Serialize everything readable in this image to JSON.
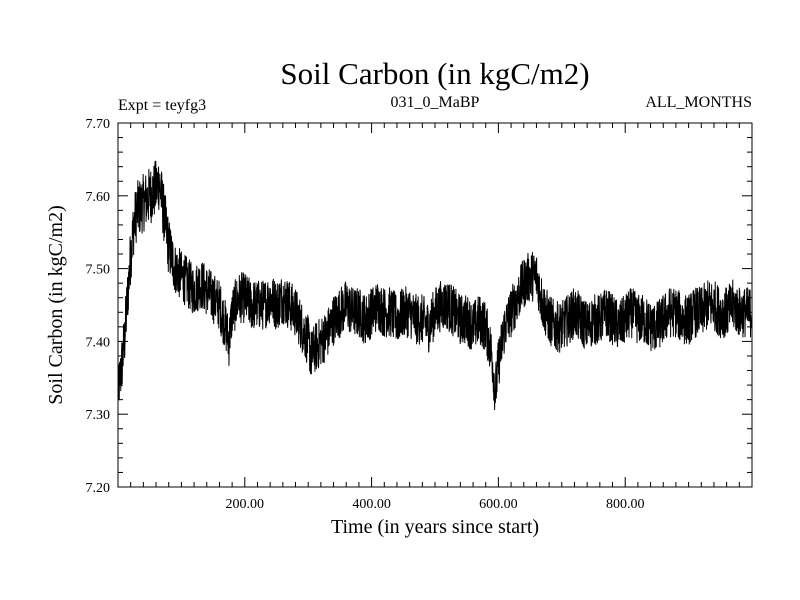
{
  "chart_data": {
    "type": "line",
    "title": "Soil Carbon (in kgC/m2)",
    "subtitle_left": "Expt = teyfg3",
    "subtitle_center": "031_0_MaBP",
    "subtitle_right": "ALL_MONTHS",
    "xlabel": "Time (in years since start)",
    "ylabel": "Soil Carbon (in kgC/m2)",
    "xlim": [
      0,
      1000
    ],
    "ylim": [
      7.2,
      7.7
    ],
    "xticks": [
      200,
      400,
      600,
      800
    ],
    "xtick_labels": [
      "200.00",
      "400.00",
      "600.00",
      "800.00"
    ],
    "yticks": [
      7.2,
      7.3,
      7.4,
      7.5,
      7.6,
      7.7
    ],
    "ytick_labels": [
      "7.20",
      "7.30",
      "7.40",
      "7.50",
      "7.60",
      "7.70"
    ],
    "grid": false,
    "line_color": "#000000",
    "series": [
      {
        "name": "Soil Carbon",
        "x": [
          0,
          5,
          10,
          15,
          20,
          25,
          30,
          40,
          50,
          60,
          65,
          70,
          80,
          90,
          100,
          110,
          120,
          130,
          140,
          150,
          160,
          170,
          175,
          180,
          190,
          200,
          210,
          220,
          230,
          240,
          250,
          260,
          270,
          280,
          290,
          300,
          305,
          310,
          320,
          330,
          340,
          350,
          360,
          370,
          380,
          390,
          400,
          410,
          420,
          430,
          440,
          450,
          460,
          470,
          480,
          490,
          500,
          510,
          520,
          530,
          540,
          550,
          560,
          570,
          580,
          590,
          595,
          600,
          610,
          620,
          630,
          640,
          650,
          660,
          665,
          670,
          680,
          690,
          700,
          710,
          720,
          730,
          740,
          750,
          760,
          770,
          780,
          790,
          800,
          810,
          820,
          830,
          840,
          850,
          860,
          870,
          880,
          890,
          900,
          910,
          920,
          930,
          940,
          950,
          960,
          970,
          980,
          990,
          1000
        ],
        "values": [
          7.33,
          7.36,
          7.4,
          7.46,
          7.52,
          7.56,
          7.58,
          7.59,
          7.6,
          7.61,
          7.62,
          7.59,
          7.53,
          7.5,
          7.49,
          7.48,
          7.47,
          7.48,
          7.47,
          7.46,
          7.45,
          7.42,
          7.4,
          7.44,
          7.46,
          7.46,
          7.45,
          7.45,
          7.45,
          7.46,
          7.45,
          7.46,
          7.45,
          7.44,
          7.42,
          7.4,
          7.38,
          7.39,
          7.4,
          7.41,
          7.43,
          7.44,
          7.45,
          7.44,
          7.44,
          7.43,
          7.44,
          7.45,
          7.44,
          7.44,
          7.43,
          7.44,
          7.44,
          7.43,
          7.43,
          7.42,
          7.44,
          7.45,
          7.45,
          7.44,
          7.43,
          7.43,
          7.42,
          7.43,
          7.42,
          7.38,
          7.33,
          7.37,
          7.42,
          7.44,
          7.46,
          7.48,
          7.49,
          7.49,
          7.47,
          7.45,
          7.43,
          7.42,
          7.42,
          7.43,
          7.44,
          7.43,
          7.42,
          7.43,
          7.43,
          7.44,
          7.43,
          7.42,
          7.43,
          7.44,
          7.43,
          7.43,
          7.42,
          7.42,
          7.43,
          7.44,
          7.44,
          7.43,
          7.43,
          7.44,
          7.44,
          7.45,
          7.45,
          7.44,
          7.44,
          7.45,
          7.44,
          7.44,
          7.44
        ],
        "noise_amplitude": [
          0.03,
          0.04,
          0.04,
          0.04,
          0.04,
          0.04,
          0.04,
          0.04,
          0.04,
          0.04,
          0.04,
          0.04,
          0.04,
          0.035,
          0.035,
          0.035,
          0.035,
          0.035,
          0.035,
          0.035,
          0.035,
          0.035,
          0.035,
          0.035,
          0.035,
          0.035,
          0.035,
          0.035,
          0.035,
          0.035,
          0.035,
          0.035,
          0.035,
          0.035,
          0.035,
          0.035,
          0.035,
          0.035,
          0.035,
          0.035,
          0.035,
          0.035,
          0.035,
          0.035,
          0.035,
          0.035,
          0.035,
          0.035,
          0.035,
          0.035,
          0.035,
          0.035,
          0.035,
          0.035,
          0.035,
          0.035,
          0.035,
          0.035,
          0.035,
          0.035,
          0.035,
          0.035,
          0.035,
          0.035,
          0.035,
          0.035,
          0.035,
          0.035,
          0.035,
          0.035,
          0.035,
          0.035,
          0.035,
          0.035,
          0.035,
          0.035,
          0.035,
          0.035,
          0.035,
          0.035,
          0.035,
          0.035,
          0.035,
          0.035,
          0.035,
          0.035,
          0.035,
          0.035,
          0.035,
          0.035,
          0.035,
          0.035,
          0.035,
          0.035,
          0.035,
          0.035,
          0.035,
          0.035,
          0.035,
          0.035,
          0.035,
          0.035,
          0.035,
          0.035,
          0.035,
          0.035,
          0.035,
          0.035,
          0.035
        ]
      }
    ]
  }
}
